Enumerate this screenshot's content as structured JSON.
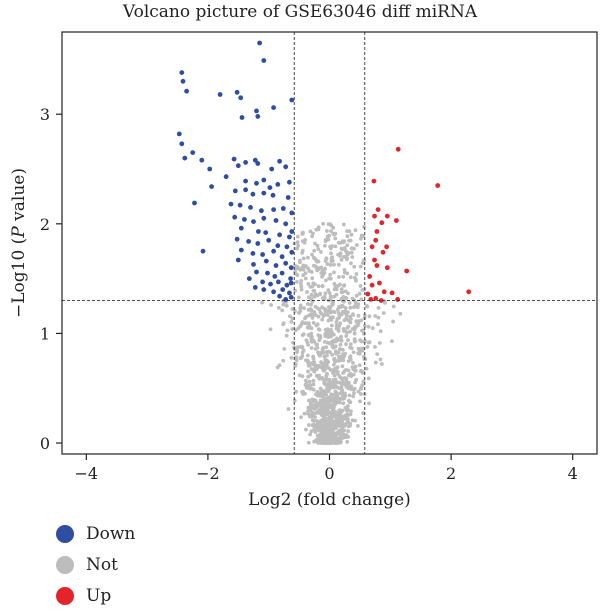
{
  "chart_data": {
    "type": "scatter",
    "title": "Volcano picture of GSE63046 diff miRNA",
    "xlabel": "Log2 (fold change)",
    "ylabel_prefix": "−Log10 (",
    "ylabel_italic": "P",
    "ylabel_suffix": " value)",
    "xlim": [
      -4.4,
      4.4
    ],
    "ylim": [
      -0.1,
      3.75
    ],
    "xticks": [
      -4,
      -2,
      0,
      2,
      4
    ],
    "xtick_labels": [
      "−4",
      "−2",
      "0",
      "2",
      "4"
    ],
    "yticks": [
      0,
      1,
      2,
      3
    ],
    "ytick_labels": [
      "0",
      "1",
      "2",
      "3"
    ],
    "thresholds": {
      "log2fc": [
        -0.58,
        0.58
      ],
      "neg_log10_p": 1.3
    },
    "legend_placement": "bottom-left",
    "colors": {
      "Down": "#2f4ea3",
      "Not": "#bdbdbd",
      "Up": "#e3242b"
    },
    "series": [
      {
        "name": "Down",
        "color": "#2f4ea3",
        "points": [
          [
            -1.15,
            3.65
          ],
          [
            -1.08,
            3.49
          ],
          [
            -2.43,
            3.38
          ],
          [
            -2.41,
            3.3
          ],
          [
            -2.35,
            3.21
          ],
          [
            -1.8,
            3.18
          ],
          [
            -1.52,
            3.2
          ],
          [
            -1.46,
            3.15
          ],
          [
            -1.2,
            3.03
          ],
          [
            -1.18,
            2.98
          ],
          [
            -1.44,
            2.97
          ],
          [
            -0.92,
            3.06
          ],
          [
            -0.62,
            3.13
          ],
          [
            -2.47,
            2.82
          ],
          [
            -2.43,
            2.73
          ],
          [
            -2.25,
            2.65
          ],
          [
            -2.38,
            2.6
          ],
          [
            -2.1,
            2.58
          ],
          [
            -1.97,
            2.5
          ],
          [
            -1.57,
            2.59
          ],
          [
            -1.5,
            2.53
          ],
          [
            -1.38,
            2.56
          ],
          [
            -1.22,
            2.58
          ],
          [
            -1.18,
            2.55
          ],
          [
            -0.95,
            2.5
          ],
          [
            -0.82,
            2.57
          ],
          [
            -0.72,
            2.52
          ],
          [
            -1.7,
            2.43
          ],
          [
            -1.38,
            2.39
          ],
          [
            -1.2,
            2.37
          ],
          [
            -1.08,
            2.4
          ],
          [
            -0.98,
            2.33
          ],
          [
            -0.85,
            2.36
          ],
          [
            -0.66,
            2.38
          ],
          [
            -1.94,
            2.34
          ],
          [
            -1.55,
            2.3
          ],
          [
            -1.38,
            2.31
          ],
          [
            -1.26,
            2.27
          ],
          [
            -1.08,
            2.28
          ],
          [
            -0.93,
            2.26
          ],
          [
            -0.68,
            2.24
          ],
          [
            -2.22,
            2.19
          ],
          [
            -1.62,
            2.18
          ],
          [
            -1.47,
            2.17
          ],
          [
            -1.3,
            2.15
          ],
          [
            -1.12,
            2.12
          ],
          [
            -0.92,
            2.13
          ],
          [
            -0.76,
            2.14
          ],
          [
            -0.62,
            2.1
          ],
          [
            -1.56,
            2.06
          ],
          [
            -1.4,
            2.04
          ],
          [
            -1.25,
            2.02
          ],
          [
            -1.08,
            2.05
          ],
          [
            -0.88,
            2.03
          ],
          [
            -0.72,
            2.0
          ],
          [
            -1.45,
            1.96
          ],
          [
            -1.17,
            1.93
          ],
          [
            -1.05,
            1.92
          ],
          [
            -0.82,
            1.9
          ],
          [
            -0.66,
            1.88
          ],
          [
            -0.62,
            1.93
          ],
          [
            -1.52,
            1.86
          ],
          [
            -1.33,
            1.84
          ],
          [
            -1.18,
            1.82
          ],
          [
            -1.0,
            1.85
          ],
          [
            -0.85,
            1.8
          ],
          [
            -0.7,
            1.79
          ],
          [
            -2.08,
            1.75
          ],
          [
            -1.45,
            1.76
          ],
          [
            -1.26,
            1.73
          ],
          [
            -1.1,
            1.72
          ],
          [
            -0.92,
            1.75
          ],
          [
            -0.78,
            1.7
          ],
          [
            -0.62,
            1.74
          ],
          [
            -1.5,
            1.67
          ],
          [
            -1.25,
            1.63
          ],
          [
            -1.04,
            1.66
          ],
          [
            -0.88,
            1.62
          ],
          [
            -0.72,
            1.64
          ],
          [
            -0.63,
            1.6
          ],
          [
            -1.2,
            1.56
          ],
          [
            -1.02,
            1.55
          ],
          [
            -0.9,
            1.52
          ],
          [
            -0.78,
            1.55
          ],
          [
            -0.64,
            1.5
          ],
          [
            -1.32,
            1.5
          ],
          [
            -1.1,
            1.47
          ],
          [
            -0.97,
            1.45
          ],
          [
            -0.84,
            1.47
          ],
          [
            -0.7,
            1.44
          ],
          [
            -0.63,
            1.46
          ],
          [
            -1.22,
            1.42
          ],
          [
            -1.08,
            1.4
          ],
          [
            -0.92,
            1.38
          ],
          [
            -0.77,
            1.4
          ],
          [
            -0.66,
            1.37
          ],
          [
            -0.82,
            1.34
          ],
          [
            -0.72,
            1.31
          ],
          [
            -0.63,
            1.33
          ]
        ]
      },
      {
        "name": "Up",
        "color": "#e3242b",
        "points": [
          [
            1.13,
            2.68
          ],
          [
            1.78,
            2.35
          ],
          [
            0.73,
            2.39
          ],
          [
            0.8,
            2.13
          ],
          [
            0.74,
            2.07
          ],
          [
            0.95,
            2.07
          ],
          [
            1.1,
            2.03
          ],
          [
            0.86,
            2.01
          ],
          [
            0.78,
            1.93
          ],
          [
            0.76,
            1.85
          ],
          [
            0.7,
            1.79
          ],
          [
            0.94,
            1.79
          ],
          [
            0.88,
            1.74
          ],
          [
            0.74,
            1.67
          ],
          [
            0.78,
            1.62
          ],
          [
            0.95,
            1.6
          ],
          [
            1.27,
            1.57
          ],
          [
            0.66,
            1.52
          ],
          [
            0.82,
            1.46
          ],
          [
            0.7,
            1.44
          ],
          [
            0.9,
            1.38
          ],
          [
            1.03,
            1.37
          ],
          [
            2.29,
            1.38
          ],
          [
            0.63,
            1.36
          ],
          [
            0.76,
            1.32
          ],
          [
            1.12,
            1.31
          ],
          [
            0.85,
            1.3
          ],
          [
            0.68,
            1.31
          ]
        ]
      },
      {
        "name": "Not",
        "color": "#bdbdbd",
        "points": []
      }
    ]
  }
}
